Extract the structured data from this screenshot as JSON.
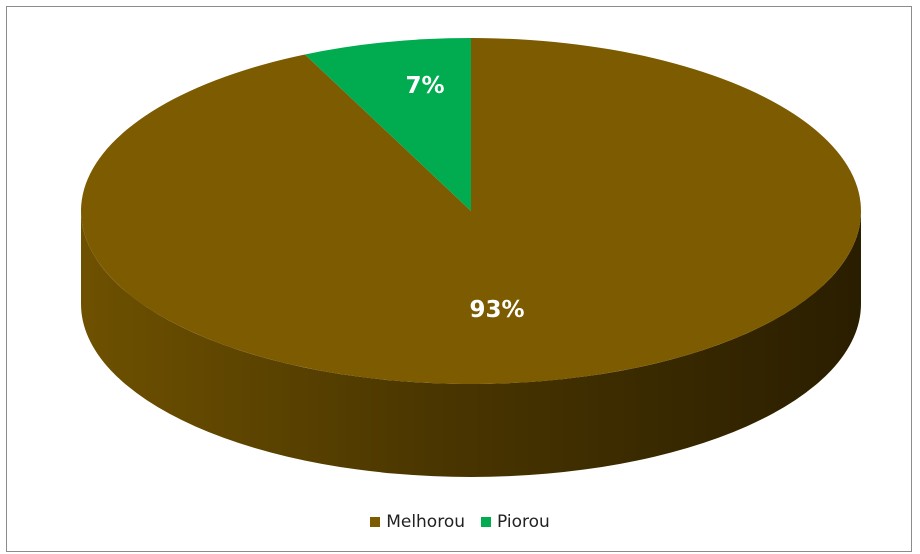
{
  "chart_data": {
    "type": "pie",
    "categories": [
      "Melhorou",
      "Piorou"
    ],
    "values": [
      93,
      7
    ],
    "labels": [
      "93%",
      "7%"
    ],
    "colors": [
      "#7d5b00",
      "#00ac4f"
    ],
    "legend": {
      "placement": "bottom",
      "entries": [
        "Melhorou",
        "Piorou"
      ]
    },
    "title": ""
  }
}
